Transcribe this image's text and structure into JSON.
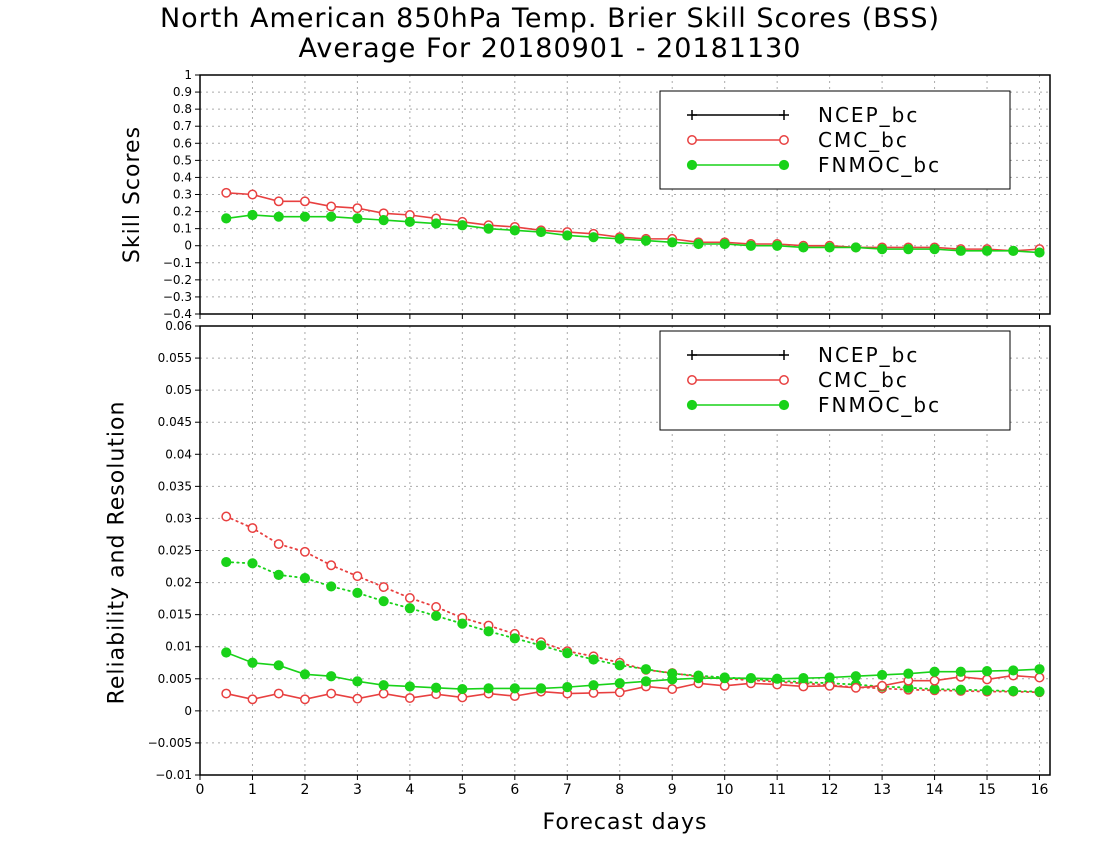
{
  "figure": {
    "title_line1": "North American 850hPa Temp. Brier Skill Scores (BSS)",
    "title_line2": "Average For 20180901 - 20181130",
    "xlabel": "Forecast days"
  },
  "colors": {
    "ncep": "#000000",
    "cmc": "#e84040",
    "fnmoc": "#19d219",
    "grid": "#aaaaaa"
  },
  "chart_data": [
    {
      "type": "line",
      "ylabel": "Skill Scores",
      "xlim": [
        0,
        16.2
      ],
      "ylim": [
        -0.4,
        1
      ],
      "x_ticks": [
        0,
        1,
        2,
        3,
        4,
        5,
        6,
        7,
        8,
        9,
        10,
        11,
        12,
        13,
        14,
        15,
        16
      ],
      "y_ticks": [
        -0.4,
        -0.3,
        -0.2,
        -0.1,
        0,
        0.1,
        0.2,
        0.3,
        0.4,
        0.5,
        0.6,
        0.7,
        0.8,
        0.9,
        1
      ],
      "grid": true,
      "legend_position": "top-right",
      "legend": [
        {
          "key": "ncep",
          "label": "NCEP_bc",
          "marker": "plus"
        },
        {
          "key": "cmc",
          "label": "CMC_bc",
          "marker": "open-circle"
        },
        {
          "key": "fnmoc",
          "label": "FNMOC_bc",
          "marker": "filled-circle"
        }
      ],
      "x": [
        0.5,
        1,
        1.5,
        2,
        2.5,
        3,
        3.5,
        4,
        4.5,
        5,
        5.5,
        6,
        6.5,
        7,
        7.5,
        8,
        8.5,
        9,
        9.5,
        10,
        10.5,
        11,
        11.5,
        12,
        12.5,
        13,
        13.5,
        14,
        14.5,
        15,
        15.5,
        16
      ],
      "series": [
        {
          "key": "cmc",
          "style": "solid",
          "marker": "open-circle",
          "values": [
            0.31,
            0.3,
            0.26,
            0.26,
            0.23,
            0.22,
            0.19,
            0.18,
            0.16,
            0.14,
            0.12,
            0.11,
            0.09,
            0.08,
            0.07,
            0.05,
            0.04,
            0.04,
            0.02,
            0.02,
            0.01,
            0.01,
            0.0,
            0.0,
            -0.01,
            -0.01,
            -0.01,
            -0.01,
            -0.02,
            -0.02,
            -0.03,
            -0.02
          ]
        },
        {
          "key": "fnmoc",
          "style": "solid",
          "marker": "filled-circle",
          "values": [
            0.16,
            0.18,
            0.17,
            0.17,
            0.17,
            0.16,
            0.15,
            0.14,
            0.13,
            0.12,
            0.1,
            0.09,
            0.08,
            0.06,
            0.05,
            0.04,
            0.03,
            0.02,
            0.01,
            0.01,
            0.0,
            0.0,
            -0.01,
            -0.01,
            -0.01,
            -0.02,
            -0.02,
            -0.02,
            -0.03,
            -0.03,
            -0.03,
            -0.04
          ]
        }
      ]
    },
    {
      "type": "line",
      "ylabel": "Reliability and Resolution",
      "xlim": [
        0,
        16.2
      ],
      "ylim": [
        -0.01,
        0.06
      ],
      "x_ticks": [
        0,
        1,
        2,
        3,
        4,
        5,
        6,
        7,
        8,
        9,
        10,
        11,
        12,
        13,
        14,
        15,
        16
      ],
      "y_ticks": [
        -0.01,
        -0.005,
        0,
        0.005,
        0.01,
        0.015,
        0.02,
        0.025,
        0.03,
        0.035,
        0.04,
        0.045,
        0.05,
        0.055,
        0.06
      ],
      "grid": true,
      "legend_position": "top-right",
      "legend": [
        {
          "key": "ncep",
          "label": "NCEP_bc",
          "marker": "plus"
        },
        {
          "key": "cmc",
          "label": "CMC_bc",
          "marker": "open-circle"
        },
        {
          "key": "fnmoc",
          "label": "FNMOC_bc",
          "marker": "filled-circle"
        }
      ],
      "x": [
        0.5,
        1,
        1.5,
        2,
        2.5,
        3,
        3.5,
        4,
        4.5,
        5,
        5.5,
        6,
        6.5,
        7,
        7.5,
        8,
        8.5,
        9,
        9.5,
        10,
        10.5,
        11,
        11.5,
        12,
        12.5,
        13,
        13.5,
        14,
        14.5,
        15,
        15.5,
        16
      ],
      "series": [
        {
          "key": "cmc",
          "style": "dotted",
          "marker": "open-circle",
          "values": [
            0.0303,
            0.0285,
            0.026,
            0.0248,
            0.0227,
            0.021,
            0.0193,
            0.0176,
            0.0162,
            0.0145,
            0.0133,
            0.012,
            0.0107,
            0.0093,
            0.0085,
            0.0075,
            0.0064,
            0.0059,
            0.0053,
            0.005,
            0.0048,
            0.0045,
            0.0043,
            0.004,
            0.0037,
            0.0035,
            0.0033,
            0.0032,
            0.0031,
            0.003,
            0.003,
            0.0029
          ]
        },
        {
          "key": "fnmoc",
          "style": "dotted",
          "marker": "filled-circle",
          "values": [
            0.0232,
            0.023,
            0.0212,
            0.0207,
            0.0194,
            0.0184,
            0.0171,
            0.016,
            0.0148,
            0.0136,
            0.0124,
            0.0113,
            0.0102,
            0.009,
            0.008,
            0.0071,
            0.0065,
            0.0058,
            0.0055,
            0.0052,
            0.005,
            0.0047,
            0.0045,
            0.0043,
            0.0041,
            0.0038,
            0.0036,
            0.0034,
            0.0033,
            0.0032,
            0.0031,
            0.003
          ]
        },
        {
          "key": "cmc",
          "style": "solid",
          "marker": "open-circle",
          "values": [
            0.0027,
            0.0018,
            0.0027,
            0.0018,
            0.0027,
            0.0019,
            0.0027,
            0.002,
            0.0026,
            0.0021,
            0.0027,
            0.0023,
            0.003,
            0.0027,
            0.0028,
            0.0029,
            0.0038,
            0.0034,
            0.0043,
            0.0039,
            0.0043,
            0.0041,
            0.0038,
            0.0039,
            0.0036,
            0.0039,
            0.0047,
            0.0047,
            0.0053,
            0.0049,
            0.0055,
            0.0052
          ]
        },
        {
          "key": "fnmoc",
          "style": "solid",
          "marker": "filled-circle",
          "values": [
            0.0091,
            0.0075,
            0.0071,
            0.0057,
            0.0054,
            0.0046,
            0.004,
            0.0038,
            0.0036,
            0.0034,
            0.0035,
            0.0035,
            0.0035,
            0.0037,
            0.004,
            0.0043,
            0.0046,
            0.0049,
            0.0051,
            0.0051,
            0.0051,
            0.005,
            0.0051,
            0.0052,
            0.0054,
            0.0056,
            0.0058,
            0.0061,
            0.0061,
            0.0062,
            0.0063,
            0.0065
          ]
        }
      ]
    }
  ]
}
